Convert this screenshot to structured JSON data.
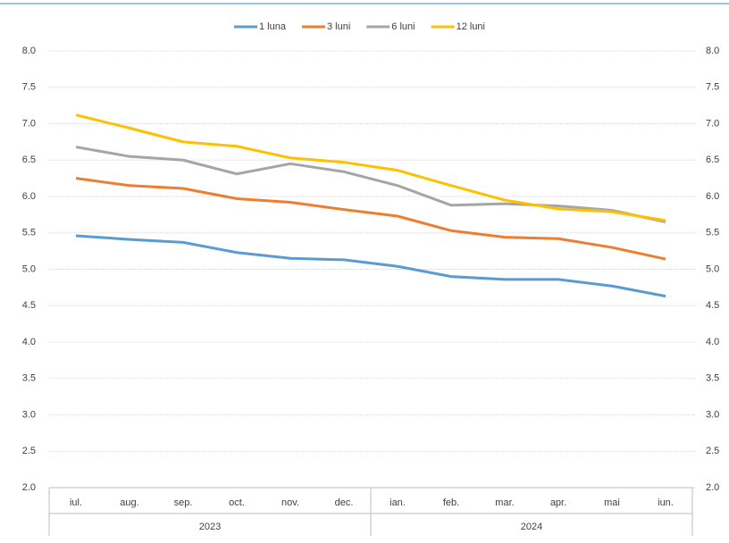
{
  "chart_data": {
    "type": "line",
    "categories": [
      "iul.",
      "aug.",
      "sep.",
      "oct.",
      "nov.",
      "dec.",
      "ian.",
      "feb.",
      "mar.",
      "apr.",
      "mai",
      "iun."
    ],
    "groups": [
      {
        "label": "2023",
        "count": 6
      },
      {
        "label": "2024",
        "count": 6
      }
    ],
    "series": [
      {
        "name": "1 luna",
        "color": "#5b9bd5",
        "values": [
          5.46,
          5.41,
          5.37,
          5.23,
          5.15,
          5.13,
          5.04,
          4.9,
          4.86,
          4.86,
          4.77,
          4.63
        ]
      },
      {
        "name": "3 luni",
        "color": "#ed7d31",
        "values": [
          6.25,
          6.15,
          6.11,
          5.97,
          5.92,
          5.82,
          5.73,
          5.53,
          5.44,
          5.42,
          5.3,
          5.14
        ]
      },
      {
        "name": "6 luni",
        "color": "#a5a5a5",
        "values": [
          6.68,
          6.55,
          6.5,
          6.31,
          6.45,
          6.34,
          6.15,
          5.88,
          5.9,
          5.87,
          5.81,
          5.65
        ]
      },
      {
        "name": "12 luni",
        "color": "#ffc000",
        "values": [
          7.12,
          6.94,
          6.75,
          6.69,
          6.53,
          6.47,
          6.36,
          6.15,
          5.95,
          5.83,
          5.79,
          5.67
        ]
      }
    ],
    "ylim": [
      2,
      8
    ],
    "yticks": [
      {
        "value": 2,
        "label": "2.0"
      },
      {
        "value": 2.5,
        "label": "2.5"
      },
      {
        "value": 3,
        "label": "3.0"
      },
      {
        "value": 3.5,
        "label": "3.5"
      },
      {
        "value": 4,
        "label": "4.0"
      },
      {
        "value": 4.5,
        "label": "4.5"
      },
      {
        "value": 5,
        "label": "5.0"
      },
      {
        "value": 5.5,
        "label": "5.5"
      },
      {
        "value": 6,
        "label": "6.0"
      },
      {
        "value": 6.5,
        "label": "6.5"
      },
      {
        "value": 7,
        "label": "7.0"
      },
      {
        "value": 7.5,
        "label": "7.5"
      },
      {
        "value": 8,
        "label": "8.0"
      }
    ],
    "y2lim": [
      2,
      8
    ],
    "y2ticks": [
      {
        "value": 2,
        "label": "2.0"
      },
      {
        "value": 2.5,
        "label": "2.5"
      },
      {
        "value": 3,
        "label": "3.0"
      },
      {
        "value": 3.5,
        "label": "3.5"
      },
      {
        "value": 4,
        "label": "4.0"
      },
      {
        "value": 4.5,
        "label": "4.5"
      },
      {
        "value": 5,
        "label": "5.0"
      },
      {
        "value": 5.5,
        "label": "5.5"
      },
      {
        "value": 6,
        "label": "6.0"
      },
      {
        "value": 6.5,
        "label": "6.5"
      },
      {
        "value": 7,
        "label": "7.0"
      },
      {
        "value": 7.5,
        "label": "7.5"
      },
      {
        "value": 8,
        "label": "8.0"
      }
    ],
    "grid": true,
    "legend": "top"
  }
}
